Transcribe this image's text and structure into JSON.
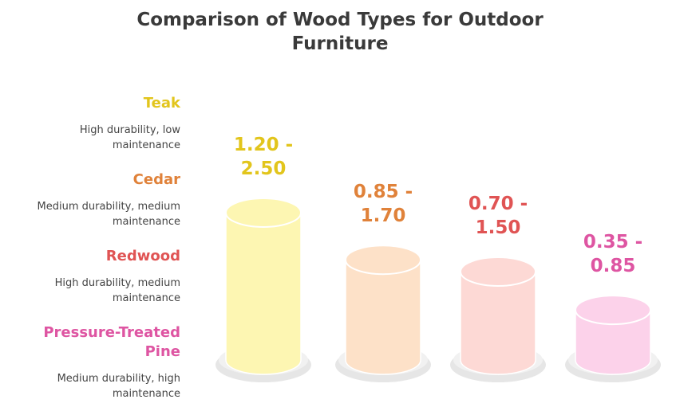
{
  "chart_data": {
    "type": "cylinder",
    "title": "Comparison of Wood Types for Outdoor Furniture",
    "categories": [
      "Teak",
      "Cedar",
      "Redwood",
      "Pressure-Treated Pine"
    ],
    "descriptions": [
      "High durability, low maintenance",
      "Medium durability, medium maintenance",
      "High durability, medium maintenance",
      "Medium durability, high maintenance"
    ],
    "values": [
      2.5,
      1.7,
      1.5,
      0.85
    ],
    "value_labels": [
      "1.20 - 2.50",
      "0.85 - 1.70",
      "0.70 - 1.50",
      "0.35 - 0.85"
    ],
    "colors": [
      "#e2c51c",
      "#e0823a",
      "#e05454",
      "#de55a2"
    ],
    "fills": [
      "#fdf6b2",
      "#fde1c8",
      "#fdd9d5",
      "#fcd2ea"
    ]
  }
}
